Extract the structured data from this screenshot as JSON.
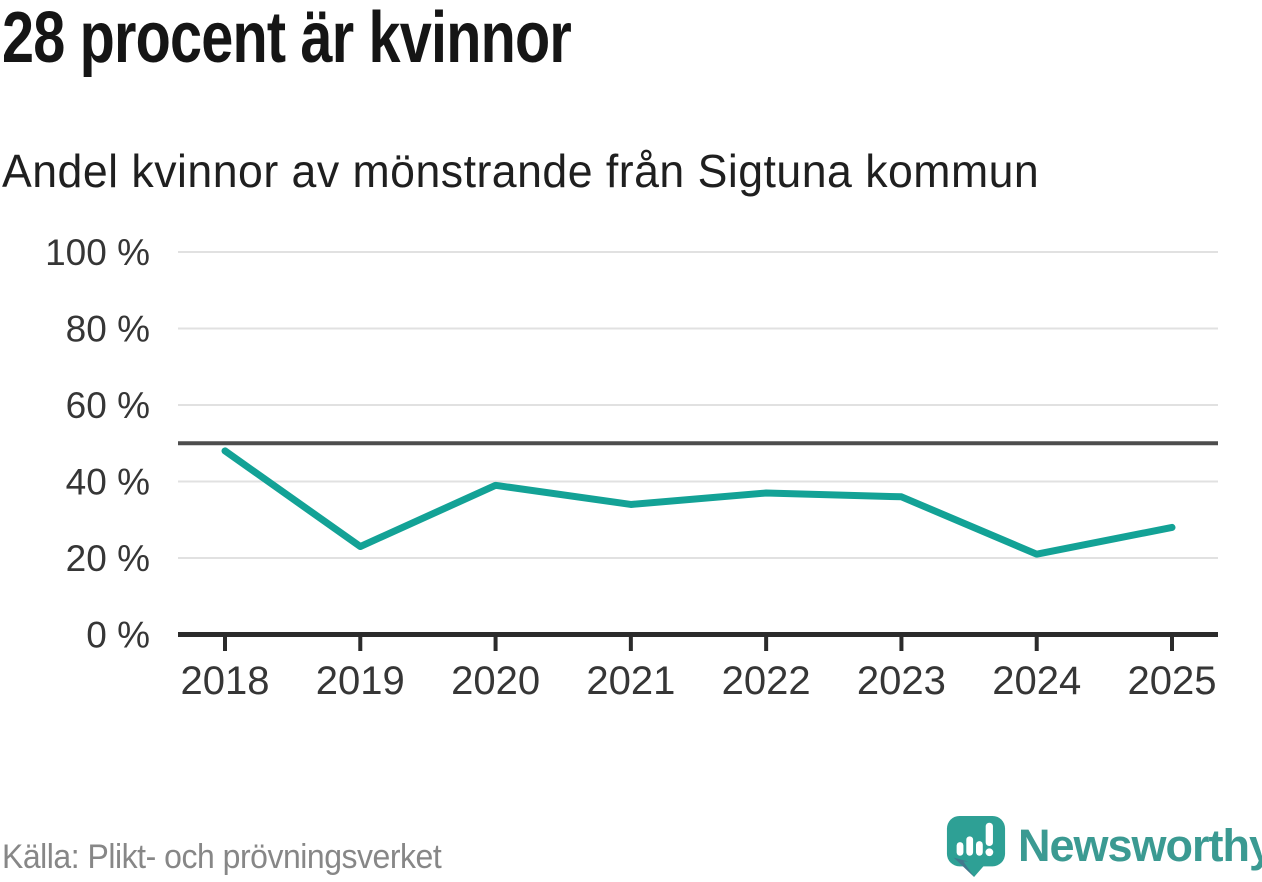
{
  "header": {
    "title": "28 procent är kvinnor",
    "subtitle": "Andel kvinnor av mönstrande från Sigtuna kommun"
  },
  "footer": {
    "source": "Källa: Plikt- och prövningsverket",
    "brand": "Newsworthy"
  },
  "colors": {
    "line": "#13a296",
    "reference_line": "#4d4d4d",
    "axis": "#2b2b2b",
    "grid": "#e1e1e1",
    "tick_label": "#363636",
    "logo_teal": "#2ea095",
    "logo_dark": "#41798d",
    "brand_text": "#3b9a92"
  },
  "chart_data": {
    "type": "line",
    "title": "28 procent är kvinnor",
    "subtitle": "Andel kvinnor av mönstrande från Sigtuna kommun",
    "x": [
      2018,
      2019,
      2020,
      2021,
      2022,
      2023,
      2024,
      2025
    ],
    "x_tick_labels": [
      "2018",
      "2019",
      "2020",
      "2021",
      "2022",
      "2023",
      "2024",
      "2025"
    ],
    "series": [
      {
        "name": "Andel kvinnor av mönstrande",
        "values": [
          48,
          23,
          39,
          34,
          37,
          36,
          21,
          28
        ]
      }
    ],
    "unit": "%",
    "ylim": [
      0,
      100
    ],
    "y_ticks": [
      0,
      20,
      40,
      60,
      80,
      100
    ],
    "y_tick_labels": [
      "0 %",
      "20 %",
      "40 %",
      "60 %",
      "80 %",
      "100 %"
    ],
    "reference_line": 50,
    "grid": true,
    "legend": "none",
    "xlabel": "",
    "ylabel": ""
  }
}
